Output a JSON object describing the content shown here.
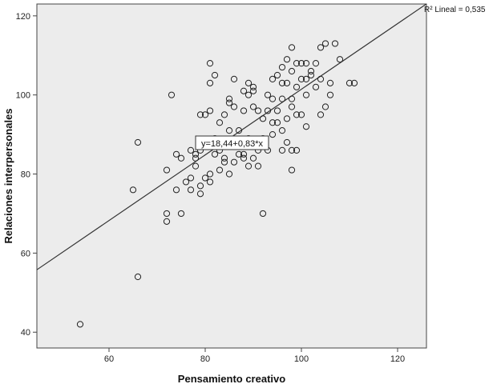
{
  "chart_data": {
    "type": "scatter",
    "title": "",
    "xlabel": "Pensamiento creativo",
    "ylabel": "Relaciones interpersonales",
    "xlim": [
      45,
      126
    ],
    "ylim": [
      36,
      123
    ],
    "xticks": [
      60,
      80,
      100,
      120
    ],
    "yticks": [
      40,
      60,
      80,
      100,
      120
    ],
    "grid": false,
    "background": "#ececec",
    "fit_line": {
      "intercept": 18.44,
      "slope": 0.83,
      "label": "y=18,44+0,83*x",
      "r2_label": "R² Lineal = 0,535"
    },
    "points": [
      [
        54,
        42
      ],
      [
        66,
        54
      ],
      [
        65,
        76
      ],
      [
        66,
        88
      ],
      [
        72,
        68
      ],
      [
        72,
        70
      ],
      [
        72,
        81
      ],
      [
        73,
        100
      ],
      [
        74,
        76
      ],
      [
        74,
        85
      ],
      [
        75,
        70
      ],
      [
        75,
        84
      ],
      [
        76,
        78
      ],
      [
        77,
        79
      ],
      [
        77,
        76
      ],
      [
        77,
        86
      ],
      [
        78,
        84
      ],
      [
        78,
        85
      ],
      [
        78,
        82
      ],
      [
        79,
        75
      ],
      [
        79,
        77
      ],
      [
        79,
        95
      ],
      [
        79,
        86
      ],
      [
        80,
        88
      ],
      [
        80,
        79
      ],
      [
        80,
        95
      ],
      [
        81,
        78
      ],
      [
        81,
        80
      ],
      [
        81,
        96
      ],
      [
        81,
        103
      ],
      [
        81,
        108
      ],
      [
        82,
        85
      ],
      [
        82,
        89
      ],
      [
        82,
        105
      ],
      [
        83,
        81
      ],
      [
        83,
        86
      ],
      [
        83,
        93
      ],
      [
        84,
        83
      ],
      [
        84,
        95
      ],
      [
        84,
        84
      ],
      [
        85,
        91
      ],
      [
        85,
        80
      ],
      [
        85,
        98
      ],
      [
        85,
        99
      ],
      [
        86,
        104
      ],
      [
        86,
        83
      ],
      [
        86,
        97
      ],
      [
        87,
        85
      ],
      [
        87,
        91
      ],
      [
        88,
        84
      ],
      [
        88,
        85
      ],
      [
        88,
        96
      ],
      [
        88,
        101
      ],
      [
        89,
        82
      ],
      [
        89,
        89
      ],
      [
        89,
        100
      ],
      [
        89,
        103
      ],
      [
        90,
        84
      ],
      [
        90,
        97
      ],
      [
        90,
        101
      ],
      [
        90,
        102
      ],
      [
        91,
        82
      ],
      [
        91,
        86
      ],
      [
        91,
        96
      ],
      [
        92,
        70
      ],
      [
        92,
        89
      ],
      [
        92,
        94
      ],
      [
        93,
        86
      ],
      [
        93,
        96
      ],
      [
        93,
        100
      ],
      [
        94,
        90
      ],
      [
        94,
        93
      ],
      [
        94,
        99
      ],
      [
        94,
        104
      ],
      [
        95,
        93
      ],
      [
        95,
        96
      ],
      [
        95,
        105
      ],
      [
        96,
        86
      ],
      [
        96,
        91
      ],
      [
        96,
        99
      ],
      [
        96,
        103
      ],
      [
        96,
        107
      ],
      [
        97,
        88
      ],
      [
        97,
        94
      ],
      [
        97,
        103
      ],
      [
        97,
        109
      ],
      [
        98,
        81
      ],
      [
        98,
        86
      ],
      [
        98,
        97
      ],
      [
        98,
        99
      ],
      [
        98,
        106
      ],
      [
        98,
        112
      ],
      [
        99,
        86
      ],
      [
        99,
        95
      ],
      [
        99,
        102
      ],
      [
        99,
        108
      ],
      [
        100,
        95
      ],
      [
        100,
        104
      ],
      [
        100,
        108
      ],
      [
        101,
        92
      ],
      [
        101,
        100
      ],
      [
        101,
        104
      ],
      [
        101,
        108
      ],
      [
        102,
        105
      ],
      [
        102,
        106
      ],
      [
        103,
        102
      ],
      [
        103,
        108
      ],
      [
        104,
        104
      ],
      [
        104,
        112
      ],
      [
        104,
        95
      ],
      [
        105,
        97
      ],
      [
        105,
        113
      ],
      [
        106,
        100
      ],
      [
        106,
        103
      ],
      [
        107,
        113
      ],
      [
        108,
        109
      ],
      [
        110,
        103
      ],
      [
        111,
        103
      ]
    ]
  }
}
